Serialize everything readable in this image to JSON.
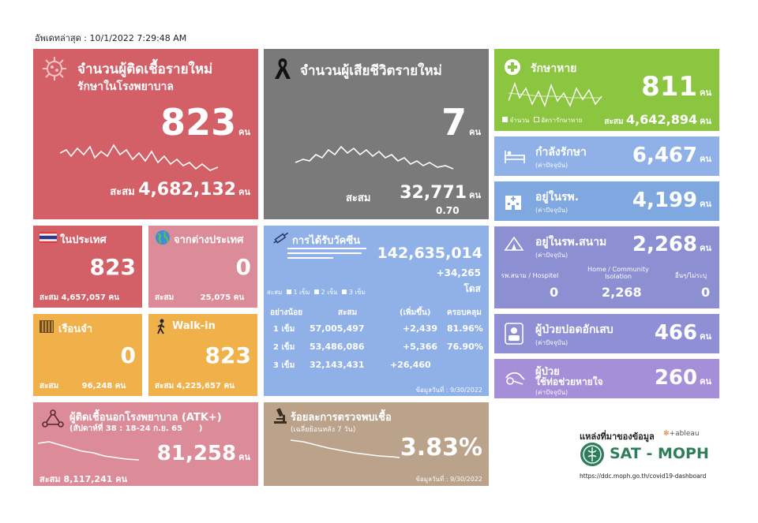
{
  "updated": "อัพเดทล่าสุด : 10/1/2022 7:29:48 AM",
  "unit": "คน",
  "acc": "สะสม",
  "new_cases": {
    "title": "จำนวนผู้ติดเชื้อรายใหม่",
    "subtitle": "รักษาในโรงพยาบาล",
    "value": "823",
    "total": "4,682,132"
  },
  "deaths": {
    "title": "จำนวนผู้เสียชีวิตรายใหม่",
    "value": "7",
    "total": "32,771",
    "rate": "0.70"
  },
  "recovered": {
    "title": "รักษาหาย",
    "value": "811",
    "total": "4,642,894",
    "legend_a": "จำนวน",
    "legend_b": "อัตรารักษาหาย"
  },
  "treating": {
    "title": "กำลังรักษา",
    "note": "(ค่าปัจจุบัน)",
    "value": "6,467"
  },
  "hospital": {
    "title": "อยู่ในรพ.",
    "note": "(ค่าปัจจุบัน)",
    "value": "4,199"
  },
  "field": {
    "title": "อยู่ในรพ.สนาม",
    "note": "(ค่าปัจจุบัน)",
    "value": "2,268",
    "cols": [
      {
        "label": "รพ.สนาม / Hospitel",
        "value": "0"
      },
      {
        "label": "Home / Community Isolation",
        "value": "2,268"
      },
      {
        "label": "อื่นๆ/ไม่ระบุ",
        "value": "0"
      }
    ]
  },
  "pneumonia": {
    "title": "ผู้ป่วยปอดอักเสบ",
    "note": "(ค่าปัจจุบัน)",
    "value": "466"
  },
  "ventilator": {
    "title": "ผู้ป่วย",
    "title2": "ใช้ท่อช่วยหายใจ",
    "note": "(ค่าปัจจุบัน)",
    "value": "260"
  },
  "domestic": {
    "title": "ในประเทศ",
    "value": "823",
    "total": "4,657,057"
  },
  "abroad": {
    "title": "จากต่างประเทศ",
    "value": "0",
    "total": "25,075"
  },
  "prison": {
    "title": "เรือนจำ",
    "value": "0",
    "total": "96,248"
  },
  "walkin": {
    "title": "Walk-in",
    "value": "823",
    "total": "4,225,657"
  },
  "vaccine": {
    "title": "การได้รับวัคซีน",
    "total": "142,635,014",
    "delta": "+34,265",
    "dose_unit": "โดส",
    "legend": [
      "1 เข็ม",
      "2 เข็ม",
      "3 เข็ม"
    ],
    "headers": [
      "อย่างน้อย",
      "สะสม",
      "(เพิ่มขึ้น)",
      "ครอบคลุม"
    ],
    "rows": [
      {
        "dose": "1 เข็ม",
        "total": "57,005,497",
        "inc": "+2,439",
        "cov": "81.96%"
      },
      {
        "dose": "2 เข็ม",
        "total": "53,486,086",
        "inc": "+5,366",
        "cov": "76.90%"
      },
      {
        "dose": "3 เข็ม",
        "total": "32,143,431",
        "inc": "+26,460",
        "cov": ""
      }
    ],
    "asof": "ข้อมูลวันที่ : 9/30/2022"
  },
  "atk": {
    "title": "ผู้ติดเชื้อนอกโรงพยาบาล (ATK+)",
    "week": "(สัปดาห์ที่ 38 : 18-24 ก.ย. 65      )",
    "value": "81,258",
    "total": "8,117,241"
  },
  "positivity": {
    "title": "ร้อยละการตรวจพบเชื้อ",
    "subtitle": "(เฉลี่ยย้อนหลัง 7 วัน)",
    "value": "3.83%",
    "asof": "ข้อมูลวันที่ : 9/30/2022"
  },
  "source": {
    "label": "แหล่งที่มาของข้อมูล",
    "tableau": "+ableau",
    "brand": "SAT - MOPH",
    "url": "https://ddc.moph.go.th/covid19-dashboard"
  },
  "colors": {
    "red": "#d35f67",
    "gray": "#7a7a7a",
    "green": "#8cc640",
    "blue": "#8fb1e8",
    "lav": "#8d8fd3",
    "violet": "#a68fd9",
    "orange": "#f0b04a",
    "lblue": "#7fa7e0",
    "pink": "#dc8b98",
    "tan": "#bba28a"
  }
}
